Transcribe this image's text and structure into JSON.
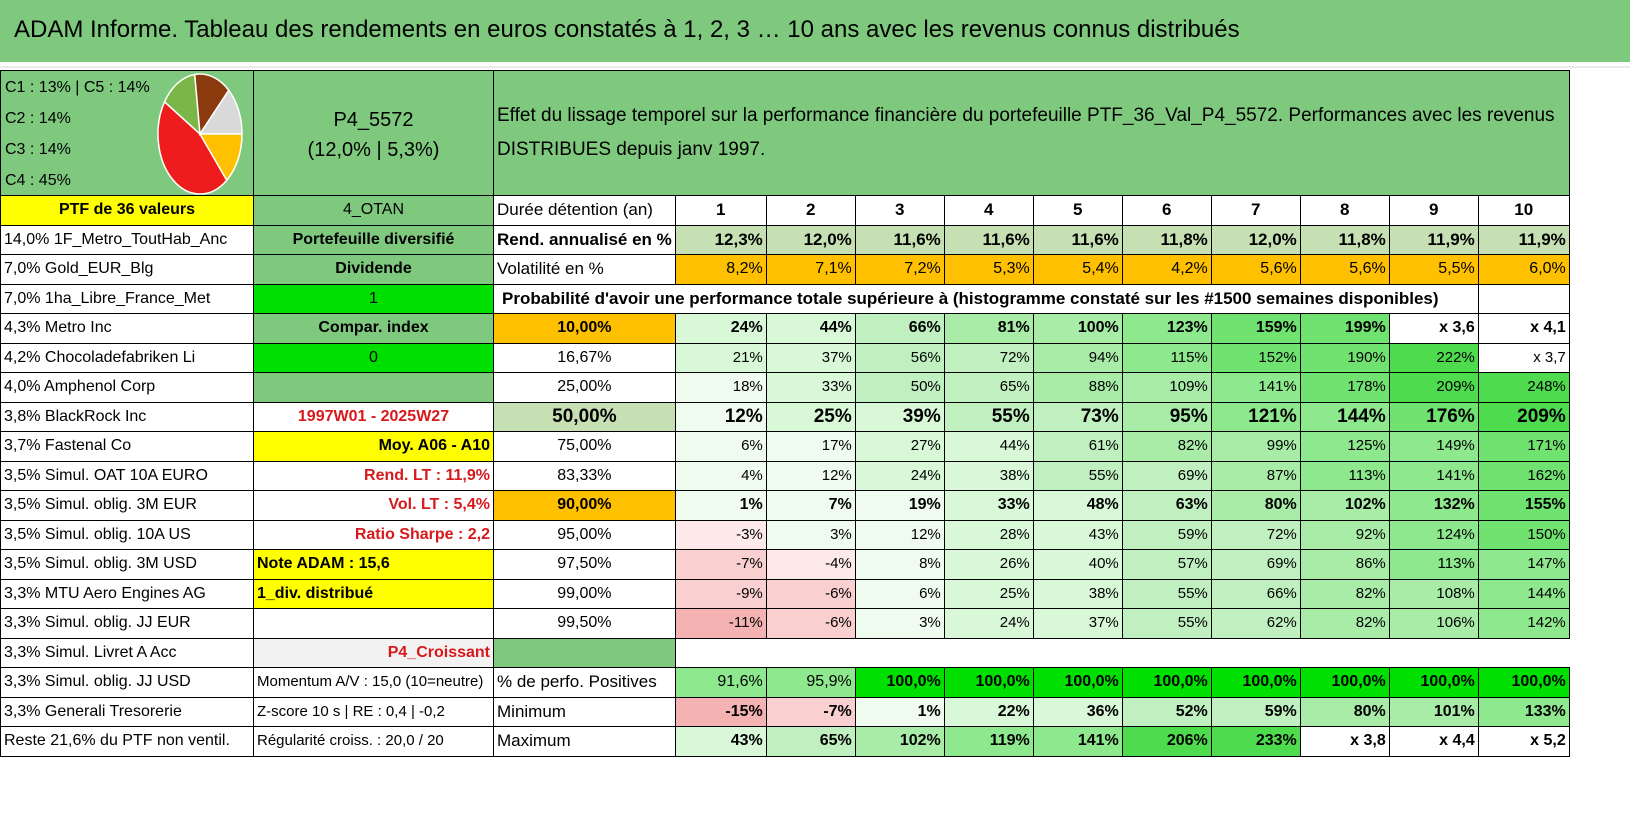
{
  "title": "ADAM Informe. Tableau des rendements en euros constatés à 1, 2, 3 … 10 ans avec les revenus connus distribués",
  "pie": {
    "labels": [
      "C1 : 13% | C5 : 14%",
      "C2 : 14%",
      "C3 : 14%",
      "C4 : 45%"
    ],
    "slices": [
      {
        "name": "C4",
        "value": 45,
        "color": "#ee1c1c"
      },
      {
        "name": "C3",
        "value": 14,
        "color": "#7ab648"
      },
      {
        "name": "C2",
        "value": 14,
        "color": "#8b3a0e"
      },
      {
        "name": "C1",
        "value": 13,
        "color": "#d9d9d9"
      },
      {
        "name": "C5",
        "value": 14,
        "color": "#ffc000"
      }
    ]
  },
  "portfolio": {
    "code": "P4_5572",
    "stats": "(12,0% | 5,3%)"
  },
  "description": "Effet du lissage temporel sur la performance financière du portefeuille PTF_36_Val_P4_5572. Performances avec les revenus DISTRIBUES depuis janv 1997.",
  "header_left": "PTF de 36 valeurs",
  "header_mid": "4_OTAN",
  "duration_label": "Durée détention (an)",
  "years": [
    "1",
    "2",
    "3",
    "4",
    "5",
    "6",
    "7",
    "8",
    "9",
    "10"
  ],
  "rend_label": "Rend. annualisé en %",
  "rend": [
    "12,3%",
    "12,0%",
    "11,6%",
    "11,6%",
    "11,6%",
    "11,8%",
    "12,0%",
    "11,8%",
    "11,9%",
    "11,9%"
  ],
  "vol_label": "Volatilité en %",
  "vol": [
    "8,2%",
    "7,1%",
    "7,2%",
    "5,3%",
    "5,4%",
    "4,2%",
    "5,6%",
    "5,6%",
    "5,5%",
    "6,0%"
  ],
  "prob_title": "Probabilité d'avoir une performance totale supérieure à (histogramme constaté sur les #1500 semaines disponibles)",
  "holdings": [
    "14,0% 1F_Metro_ToutHab_Anc",
    "7,0% Gold_EUR_Blg",
    "7,0% 1ha_Libre_France_Met",
    "4,3% Metro Inc",
    "4,2% Chocoladefabriken Li",
    "4,0% Amphenol Corp",
    "3,8% BlackRock Inc",
    "3,7% Fastenal Co",
    "3,5% Simul. OAT 10A EURO",
    "3,5% Simul. oblig. 3M EUR",
    "3,5% Simul. oblig. 10A US",
    "3,5% Simul. oblig. 3M USD",
    "3,3% MTU Aero Engines AG",
    "3,3% Simul. oblig. JJ EUR",
    "3,3% Simul. Livret A Acc",
    "3,3% Simul. oblig. JJ USD",
    "3,3% Generali Tresorerie",
    "Reste 21,6% du PTF non ventil."
  ],
  "info": {
    "diversified": "Portefeuille diversifié",
    "dividend": "Dividende",
    "one": "1",
    "compar_index": "Compar. index",
    "zero": "0",
    "empty": "",
    "period": "1997W01 - 2025W27",
    "moy": "Moy. A06 - A10",
    "rend_lt": "Rend. LT : 11,9%",
    "vol_lt": "Vol. LT : 5,4%",
    "sharpe": "Ratio Sharpe : 2,2",
    "note": "Note ADAM : 15,6",
    "div": "1_div. distribué",
    "blank": "",
    "croissant": "P4_Croissant",
    "momentum": "Momentum A/V : 15,0 (10=neutre)",
    "zscore": "Z-score 10 s | RE : 0,4 | -0,2",
    "regularite": "Régularité croiss. : 20,0 / 20"
  },
  "prob_rows": [
    {
      "pct": "10,00%",
      "values": [
        "24%",
        "44%",
        "66%",
        "81%",
        "100%",
        "123%",
        "159%",
        "199%",
        "x 3,6",
        "x 4,1"
      ]
    },
    {
      "pct": "16,67%",
      "values": [
        "21%",
        "37%",
        "56%",
        "72%",
        "94%",
        "115%",
        "152%",
        "190%",
        "222%",
        "x 3,7"
      ]
    },
    {
      "pct": "25,00%",
      "values": [
        "18%",
        "33%",
        "50%",
        "65%",
        "88%",
        "109%",
        "141%",
        "178%",
        "209%",
        "248%"
      ]
    },
    {
      "pct": "50,00%",
      "values": [
        "12%",
        "25%",
        "39%",
        "55%",
        "73%",
        "95%",
        "121%",
        "144%",
        "176%",
        "209%"
      ]
    },
    {
      "pct": "75,00%",
      "values": [
        "6%",
        "17%",
        "27%",
        "44%",
        "61%",
        "82%",
        "99%",
        "125%",
        "149%",
        "171%"
      ]
    },
    {
      "pct": "83,33%",
      "values": [
        "4%",
        "12%",
        "24%",
        "38%",
        "55%",
        "69%",
        "87%",
        "113%",
        "141%",
        "162%"
      ]
    },
    {
      "pct": "90,00%",
      "values": [
        "1%",
        "7%",
        "19%",
        "33%",
        "48%",
        "63%",
        "80%",
        "102%",
        "132%",
        "155%"
      ]
    },
    {
      "pct": "95,00%",
      "values": [
        "-3%",
        "3%",
        "12%",
        "28%",
        "43%",
        "59%",
        "72%",
        "92%",
        "124%",
        "150%"
      ]
    },
    {
      "pct": "97,50%",
      "values": [
        "-7%",
        "-4%",
        "8%",
        "26%",
        "40%",
        "57%",
        "69%",
        "86%",
        "113%",
        "147%"
      ]
    },
    {
      "pct": "99,00%",
      "values": [
        "-9%",
        "-6%",
        "6%",
        "25%",
        "38%",
        "55%",
        "66%",
        "82%",
        "108%",
        "144%"
      ]
    },
    {
      "pct": "99,50%",
      "values": [
        "-11%",
        "-6%",
        "3%",
        "24%",
        "37%",
        "55%",
        "62%",
        "82%",
        "106%",
        "142%"
      ]
    }
  ],
  "pos_label": "% de perfo. Positives",
  "pos": [
    "91,6%",
    "95,9%",
    "100,0%",
    "100,0%",
    "100,0%",
    "100,0%",
    "100,0%",
    "100,0%",
    "100,0%",
    "100,0%"
  ],
  "min_label": "Minimum",
  "min": [
    "-15%",
    "-7%",
    "1%",
    "22%",
    "36%",
    "52%",
    "59%",
    "80%",
    "101%",
    "133%"
  ],
  "max_label": "Maximum",
  "max": [
    "43%",
    "65%",
    "102%",
    "119%",
    "141%",
    "206%",
    "233%",
    "x 3,8",
    "x 4,4",
    "x 5,2"
  ]
}
